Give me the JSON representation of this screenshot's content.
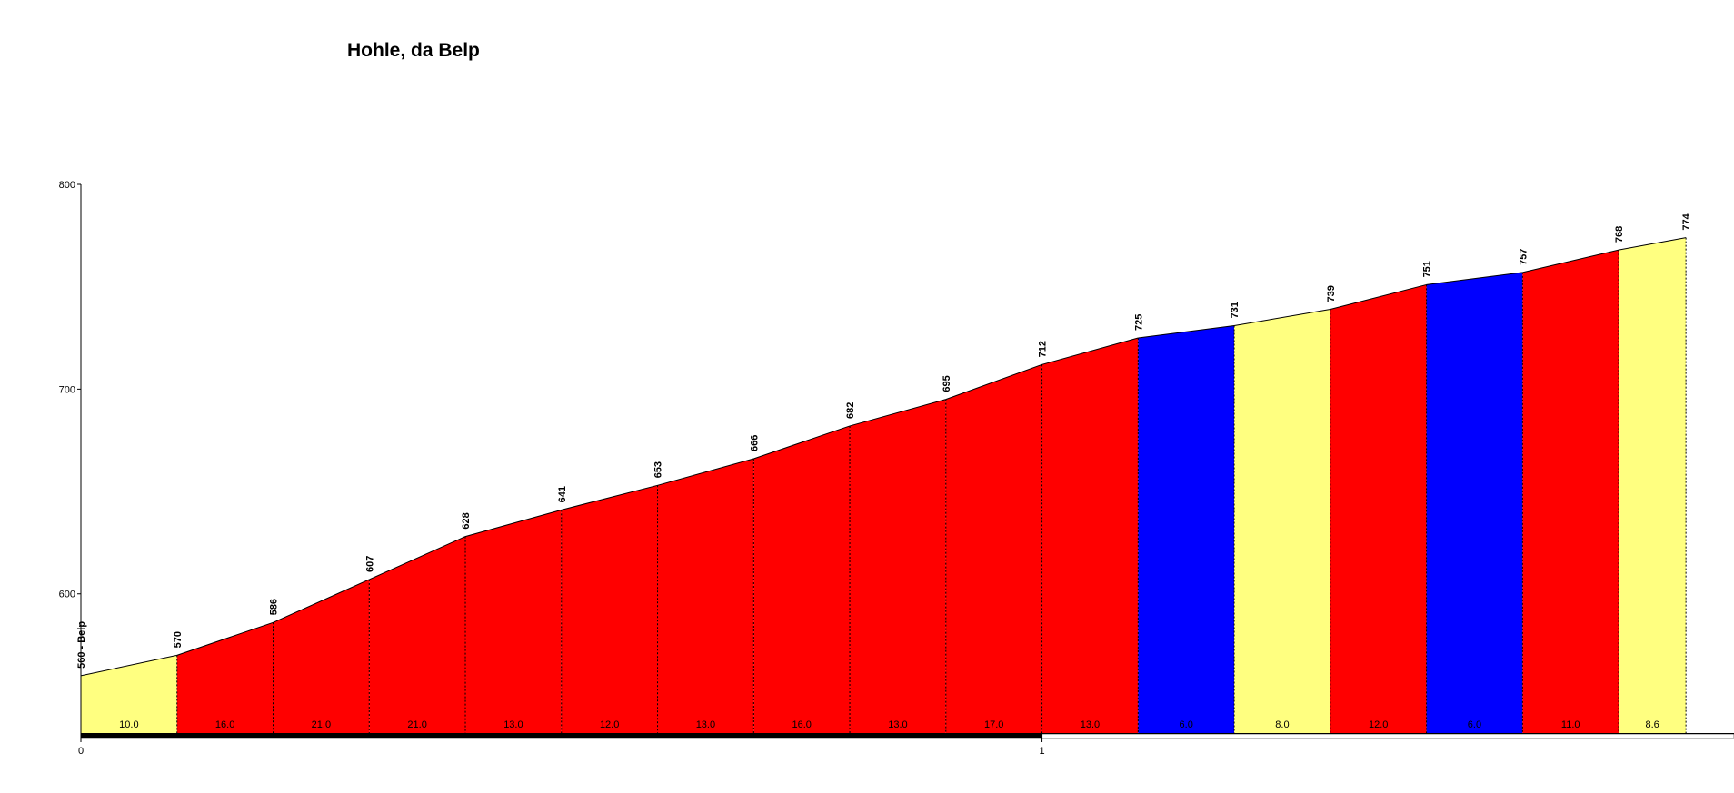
{
  "chart_data": {
    "type": "profile",
    "title": "Hohle, da Belp",
    "x": [
      0,
      0.1,
      0.2,
      0.3,
      0.4,
      0.5,
      0.6,
      0.7,
      0.8,
      0.9,
      1.0,
      1.1,
      1.2,
      1.3,
      1.4,
      1.5,
      1.6,
      1.67
    ],
    "values": [
      560,
      570,
      586,
      607,
      628,
      641,
      653,
      666,
      682,
      695,
      712,
      725,
      731,
      739,
      751,
      757,
      768,
      774
    ],
    "value_labels": [
      "560 - Belp",
      "570",
      "586",
      "607",
      "628",
      "641",
      "653",
      "666",
      "682",
      "695",
      "712",
      "725",
      "731",
      "739",
      "751",
      "757",
      "768",
      "774"
    ],
    "grades": [
      10,
      16,
      21,
      21,
      13,
      12,
      13,
      16,
      13,
      17,
      13,
      6,
      8,
      12,
      6,
      11,
      8.6
    ],
    "grade_labels": [
      "10.0",
      "16.0",
      "21.0",
      "21.0",
      "13.0",
      "12.0",
      "13.0",
      "16.0",
      "13.0",
      "17.0",
      "13.0",
      "6.0",
      "8.0",
      "12.0",
      "6.0",
      "11.0",
      "8.6"
    ],
    "segment_colors": [
      "#ffff80",
      "#ff0000",
      "#ff0000",
      "#ff0000",
      "#ff0000",
      "#ff0000",
      "#ff0000",
      "#ff0000",
      "#ff0000",
      "#ff0000",
      "#ff0000",
      "#0000ff",
      "#ffff80",
      "#ff0000",
      "#0000ff",
      "#ff0000",
      "#ffff80"
    ],
    "xlim": [
      0,
      1.72
    ],
    "xticks": [
      0,
      1
    ],
    "ylim": [
      532,
      800
    ],
    "yticks": [
      600,
      700,
      800
    ]
  }
}
